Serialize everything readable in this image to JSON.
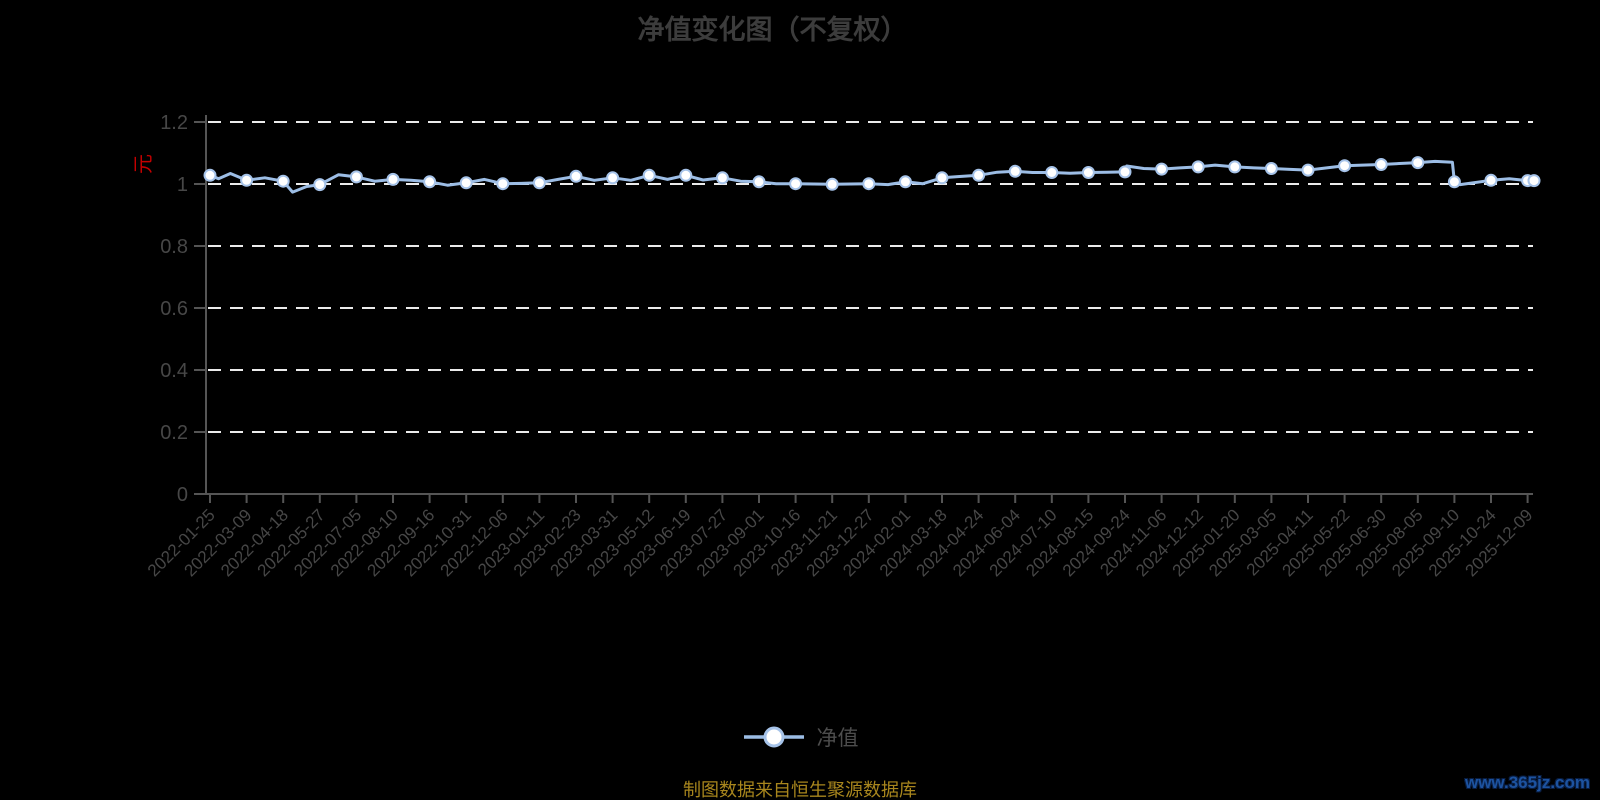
{
  "page": {
    "title": "净值变化图（不复权）",
    "source_note": "制图数据来自恒生聚源数据库",
    "watermark": "www.365jz.com"
  },
  "colors": {
    "background": "#000000",
    "title": "#3c3c3c",
    "axis": "#555555",
    "axis_label": "#474747",
    "grid": "#ebebeb",
    "line": "#9cbde5",
    "marker_fill": "#ffffff",
    "marker_stroke": "#a6c3e9",
    "unit": "#c40000",
    "legend_label": "#4d4d4d",
    "source": "#a8861d",
    "watermark": "#1d53a0"
  },
  "chart_data": {
    "type": "line",
    "title": "净值变化图（不复权）",
    "grid": "dashed-horizontal",
    "y_axis": {
      "unit": "元",
      "min": 0,
      "max": 1.2,
      "tick_values": [
        0,
        0.2,
        0.4,
        0.6,
        0.8,
        1,
        1.2
      ],
      "tick_labels": [
        "0",
        "0.2",
        "0.4",
        "0.6",
        "0.8",
        "1",
        "1.2"
      ]
    },
    "x_axis": {
      "tick_labels": [
        "2022-01-25",
        "2022-03-09",
        "2022-04-18",
        "2022-05-27",
        "2022-07-05",
        "2022-08-10",
        "2022-09-16",
        "2022-10-31",
        "2022-12-06",
        "2023-01-11",
        "2023-02-23",
        "2023-03-31",
        "2023-05-12",
        "2023-06-19",
        "2023-07-27",
        "2023-09-01",
        "2023-10-16",
        "2023-11-21",
        "2023-12-27",
        "2024-02-01",
        "2024-03-18",
        "2024-04-24",
        "2024-06-04",
        "2024-07-10",
        "2024-08-15",
        "2024-09-24",
        "2024-11-06",
        "2024-12-12",
        "2025-01-20",
        "2025-03-05",
        "2025-04-11",
        "2025-05-22",
        "2025-06-30",
        "2025-08-05",
        "2025-09-10",
        "2025-10-24",
        "2025-12-09"
      ]
    },
    "legend": {
      "position": "bottom",
      "items": [
        "净值"
      ]
    },
    "series": [
      {
        "name": "净值",
        "points": [
          [
            "2022-01-25",
            1.028,
            1
          ],
          [
            "2022-02-04",
            1.017,
            0
          ],
          [
            "2022-02-18",
            1.034,
            0
          ],
          [
            "2022-03-09",
            1.012,
            1
          ],
          [
            "2022-03-29",
            1.02,
            0
          ],
          [
            "2022-04-18",
            1.009,
            1
          ],
          [
            "2022-04-28",
            0.974,
            0
          ],
          [
            "2022-05-13",
            0.992,
            0
          ],
          [
            "2022-05-27",
            0.998,
            1
          ],
          [
            "2022-06-16",
            1.03,
            0
          ],
          [
            "2022-07-05",
            1.023,
            1
          ],
          [
            "2022-07-23",
            1.009,
            0
          ],
          [
            "2022-08-10",
            1.015,
            1
          ],
          [
            "2022-08-28",
            1.012,
            0
          ],
          [
            "2022-09-16",
            1.007,
            1
          ],
          [
            "2022-10-08",
            0.996,
            0
          ],
          [
            "2022-10-31",
            1.004,
            1
          ],
          [
            "2022-11-18",
            1.015,
            0
          ],
          [
            "2022-12-06",
            1.001,
            1
          ],
          [
            "2022-12-24",
            1.002,
            0
          ],
          [
            "2023-01-11",
            1.004,
            1
          ],
          [
            "2023-02-02",
            1.015,
            0
          ],
          [
            "2023-02-23",
            1.025,
            1
          ],
          [
            "2023-03-13",
            1.012,
            0
          ],
          [
            "2023-03-31",
            1.02,
            1
          ],
          [
            "2023-04-21",
            1.012,
            0
          ],
          [
            "2023-05-12",
            1.028,
            1
          ],
          [
            "2023-05-31",
            1.015,
            0
          ],
          [
            "2023-06-19",
            1.028,
            1
          ],
          [
            "2023-07-07",
            1.013,
            0
          ],
          [
            "2023-07-27",
            1.02,
            1
          ],
          [
            "2023-08-14",
            1.009,
            0
          ],
          [
            "2023-09-01",
            1.007,
            1
          ],
          [
            "2023-09-22",
            1.001,
            0
          ],
          [
            "2023-10-16",
            1.001,
            1
          ],
          [
            "2023-11-03",
            1.0,
            0
          ],
          [
            "2023-11-21",
            0.999,
            1
          ],
          [
            "2023-12-09",
            1.0,
            0
          ],
          [
            "2023-12-27",
            1.001,
            1
          ],
          [
            "2024-01-15",
            0.998,
            0
          ],
          [
            "2024-02-01",
            1.007,
            1
          ],
          [
            "2024-02-23",
            1.001,
            0
          ],
          [
            "2024-03-18",
            1.02,
            1
          ],
          [
            "2024-04-03",
            1.024,
            0
          ],
          [
            "2024-04-24",
            1.028,
            1
          ],
          [
            "2024-05-15",
            1.038,
            0
          ],
          [
            "2024-06-04",
            1.041,
            1
          ],
          [
            "2024-06-21",
            1.037,
            0
          ],
          [
            "2024-07-10",
            1.037,
            1
          ],
          [
            "2024-07-28",
            1.035,
            0
          ],
          [
            "2024-08-15",
            1.037,
            1
          ],
          [
            "2024-09-04",
            1.038,
            0
          ],
          [
            "2024-09-24",
            1.039,
            1
          ],
          [
            "2024-09-26",
            1.058,
            0
          ],
          [
            "2024-10-16",
            1.05,
            0
          ],
          [
            "2024-11-06",
            1.048,
            1
          ],
          [
            "2024-11-24",
            1.052,
            0
          ],
          [
            "2024-12-12",
            1.055,
            1
          ],
          [
            "2024-12-30",
            1.061,
            0
          ],
          [
            "2025-01-20",
            1.055,
            1
          ],
          [
            "2025-02-12",
            1.052,
            0
          ],
          [
            "2025-03-05",
            1.05,
            1
          ],
          [
            "2025-03-24",
            1.047,
            0
          ],
          [
            "2025-04-11",
            1.045,
            1
          ],
          [
            "2025-05-02",
            1.052,
            0
          ],
          [
            "2025-05-22",
            1.059,
            1
          ],
          [
            "2025-06-10",
            1.061,
            0
          ],
          [
            "2025-06-30",
            1.063,
            1
          ],
          [
            "2025-07-18",
            1.066,
            0
          ],
          [
            "2025-08-05",
            1.069,
            1
          ],
          [
            "2025-08-22",
            1.073,
            0
          ],
          [
            "2025-09-08",
            1.07,
            0
          ],
          [
            "2025-09-10",
            1.007,
            1
          ],
          [
            "2025-09-17",
            0.998,
            0
          ],
          [
            "2025-10-24",
            1.012,
            1
          ],
          [
            "2025-11-16",
            1.017,
            0
          ],
          [
            "2025-12-09",
            1.011,
            1
          ],
          [
            "2025-12-17",
            1.011,
            1
          ]
        ]
      }
    ]
  }
}
